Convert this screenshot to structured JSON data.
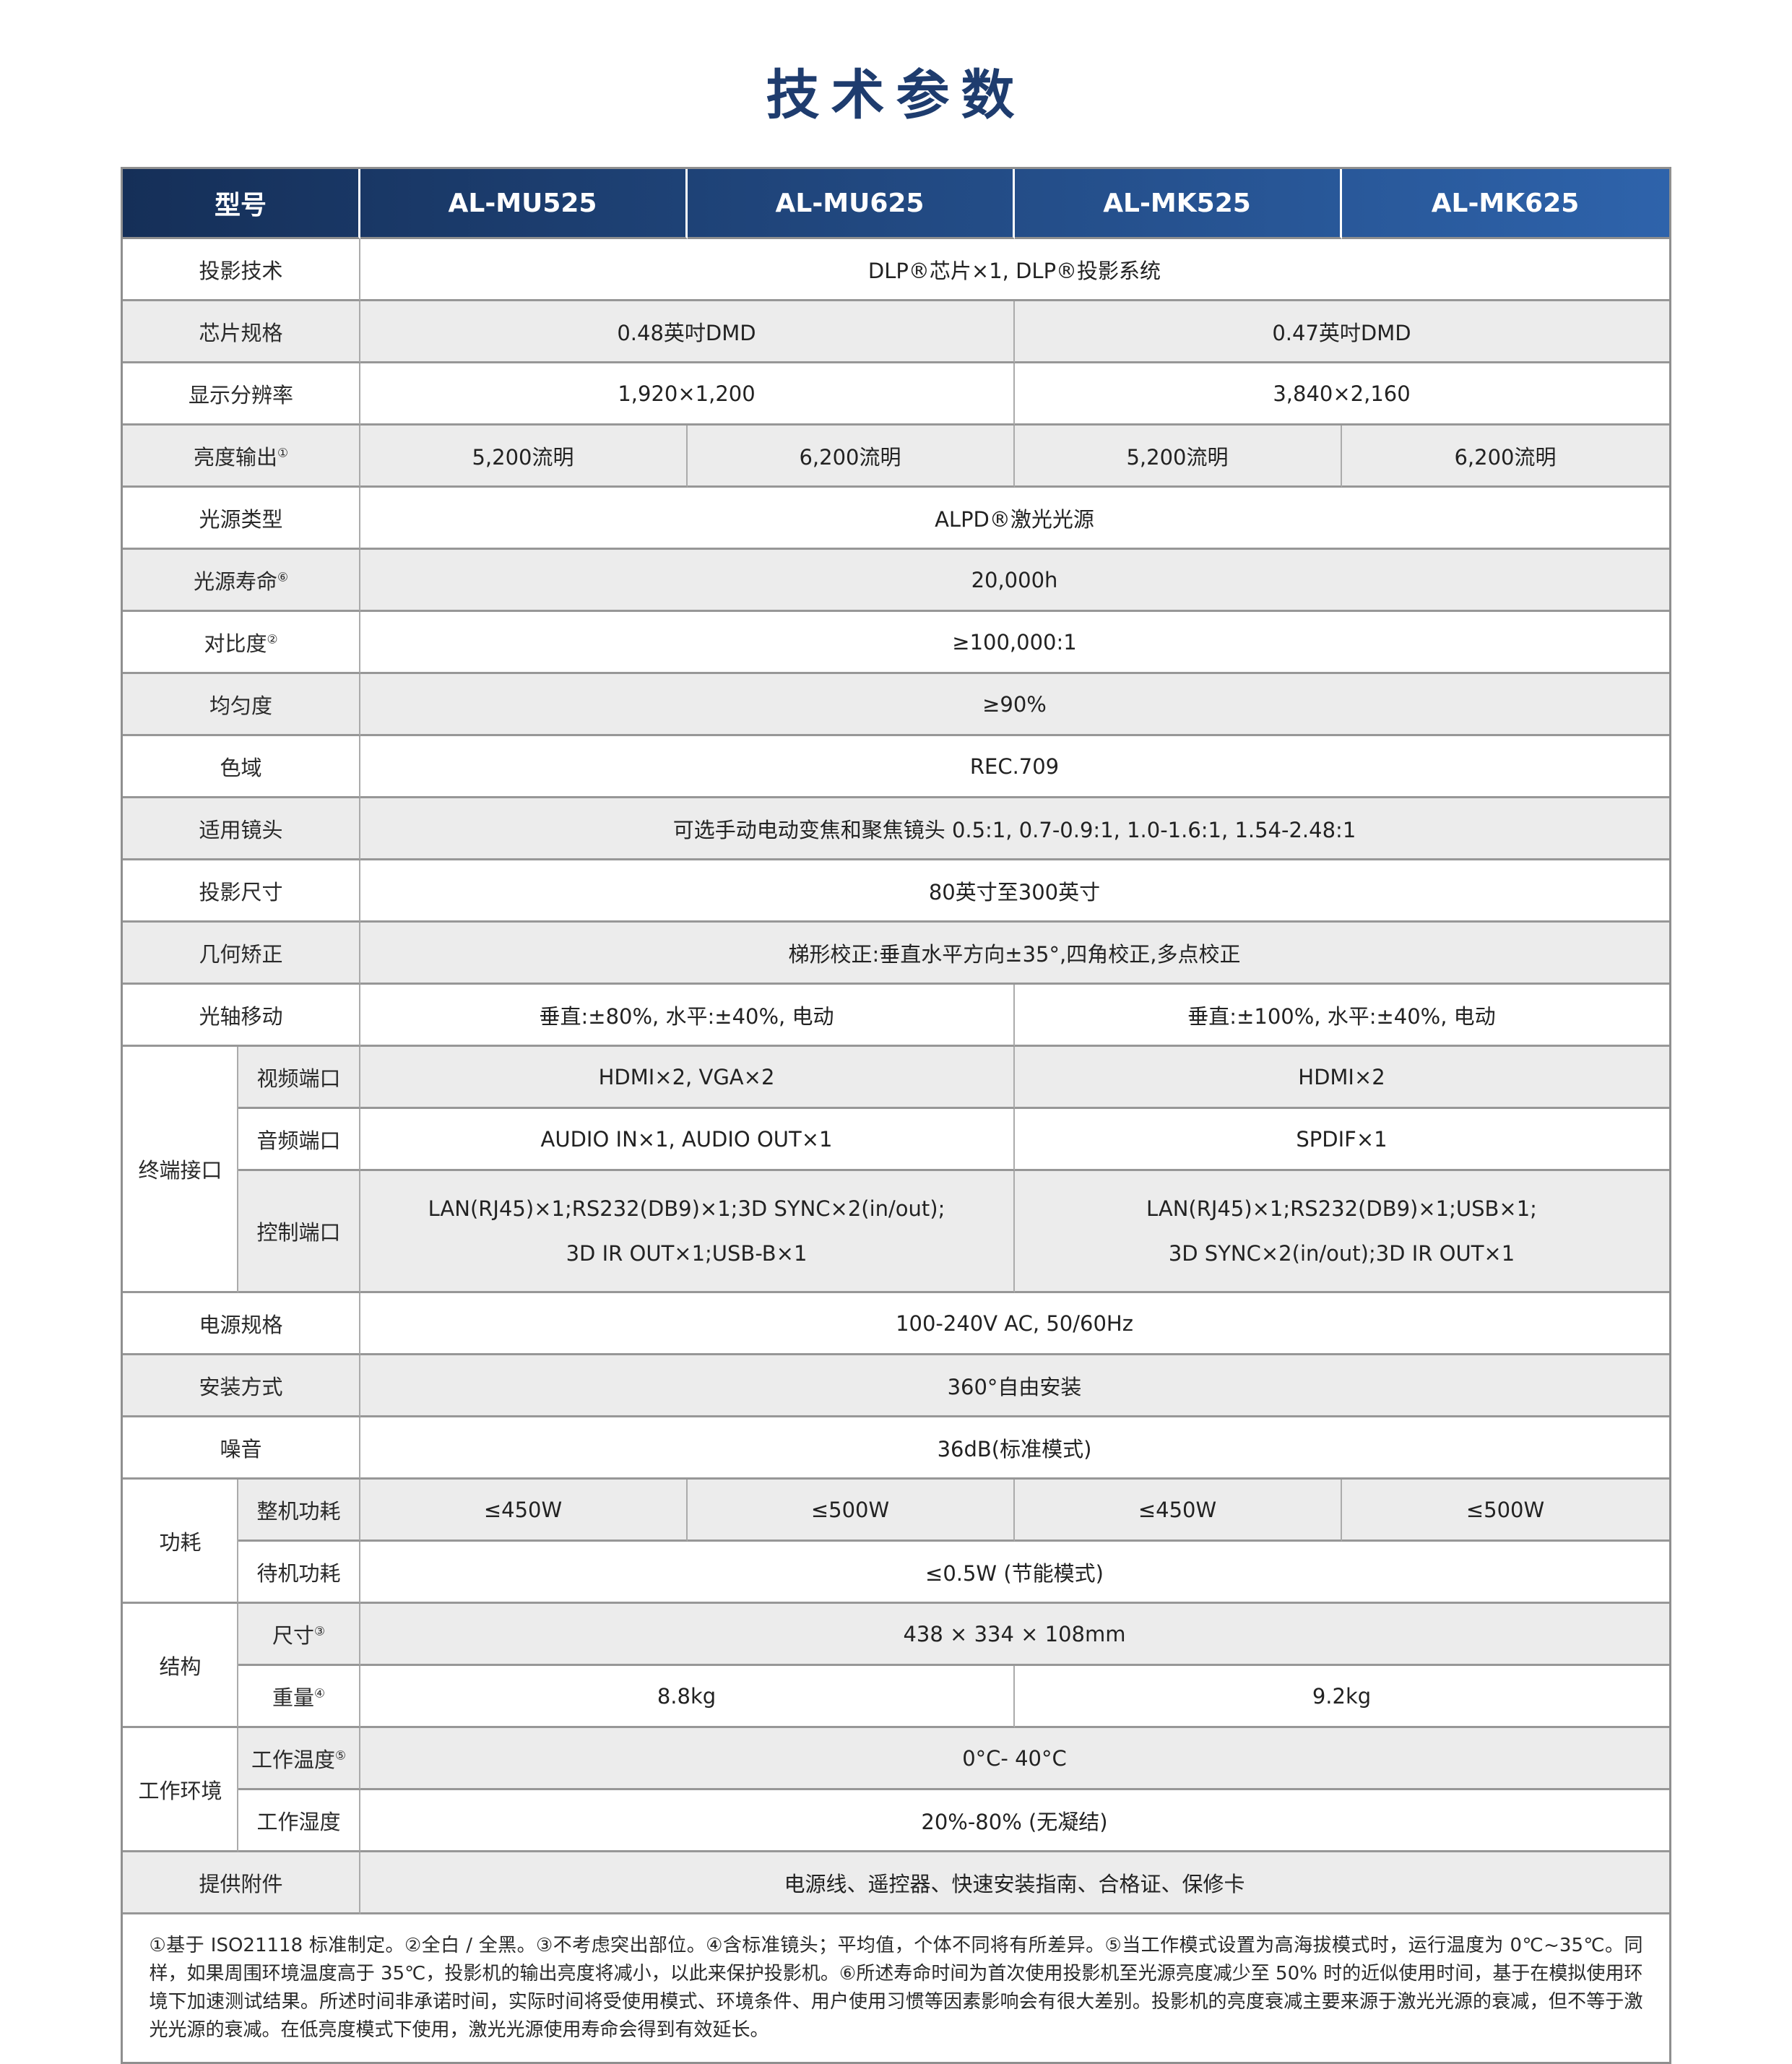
{
  "page": {
    "title": "技术参数"
  },
  "colors": {
    "title": "#1e3c6e",
    "header_grad_left": "#152f58",
    "header_grad_right": "#2e63ab",
    "row_alt": "#ececec",
    "border": "#8f8f8f"
  },
  "header": {
    "model_label": "型号",
    "models": [
      "AL-MU525",
      "AL-MU625",
      "AL-MK525",
      "AL-MK625"
    ]
  },
  "rows": {
    "projection_tech": {
      "label": "投影技术",
      "value": "DLP®芯片×1, DLP®投影系统"
    },
    "chip_spec": {
      "label": "芯片规格",
      "left": "0.48英吋DMD",
      "right": "0.47英吋DMD"
    },
    "resolution": {
      "label": "显示分辨率",
      "left": "1,920×1,200",
      "right": "3,840×2,160"
    },
    "brightness": {
      "label": "亮度输出",
      "sup": "①",
      "values": [
        "5,200流明",
        "6,200流明",
        "5,200流明",
        "6,200流明"
      ]
    },
    "light_source_type": {
      "label": "光源类型",
      "value": "ALPD®激光光源"
    },
    "light_source_life": {
      "label": "光源寿命",
      "sup": "⑥",
      "value": "20,000h"
    },
    "contrast": {
      "label": "对比度",
      "sup": "②",
      "value": "≥100,000:1"
    },
    "uniformity": {
      "label": "均匀度",
      "value": "≥90%"
    },
    "color_gamut": {
      "label": "色域",
      "value": "REC.709"
    },
    "lens": {
      "label": "适用镜头",
      "value": "可选手动电动变焦和聚焦镜头 0.5:1, 0.7-0.9:1, 1.0-1.6:1, 1.54-2.48:1"
    },
    "image_size": {
      "label": "投影尺寸",
      "value": "80英寸至300英寸"
    },
    "geometry": {
      "label": "几何矫正",
      "value": "梯形校正:垂直水平方向±35°,四角校正,多点校正"
    },
    "lens_shift": {
      "label": "光轴移动",
      "left": "垂直:±80%, 水平:±40%, 电动",
      "right": "垂直:±100%, 水平:±40%, 电动"
    },
    "terminals": {
      "group": "终端接口",
      "video": {
        "label": "视频端口",
        "left": "HDMI×2, VGA×2",
        "right": "HDMI×2"
      },
      "audio": {
        "label": "音频端口",
        "left": "AUDIO IN×1, AUDIO OUT×1",
        "right": "SPDIF×1"
      },
      "control": {
        "label": "控制端口",
        "left_line1": "LAN(RJ45)×1;RS232(DB9)×1;3D SYNC×2(in/out);",
        "left_line2": "3D IR OUT×1;USB-B×1",
        "right_line1": "LAN(RJ45)×1;RS232(DB9)×1;USB×1;",
        "right_line2": "3D SYNC×2(in/out);3D IR OUT×1"
      }
    },
    "power_spec": {
      "label": "电源规格",
      "value": "100-240V AC, 50/60Hz"
    },
    "installation": {
      "label": "安装方式",
      "value": "360°自由安装"
    },
    "noise": {
      "label": "噪音",
      "value": "36dB(标准模式)"
    },
    "power": {
      "group": "功耗",
      "full": {
        "label": "整机功耗",
        "values": [
          "≤450W",
          "≤500W",
          "≤450W",
          "≤500W"
        ]
      },
      "standby": {
        "label": "待机功耗",
        "value": "≤0.5W (节能模式)"
      }
    },
    "structure": {
      "group": "结构",
      "dimensions": {
        "label": "尺寸",
        "sup": "③",
        "value": "438 × 334 × 108mm"
      },
      "weight": {
        "label": "重量",
        "sup": "④",
        "left": "8.8kg",
        "right": "9.2kg"
      }
    },
    "environment": {
      "group": "工作环境",
      "temperature": {
        "label": "工作温度",
        "sup": "⑤",
        "value": "0°C- 40°C"
      },
      "humidity": {
        "label": "工作湿度",
        "value": "20%-80% (无凝结)"
      }
    },
    "accessories": {
      "label": "提供附件",
      "value": "电源线、遥控器、快速安装指南、合格证、保修卡"
    }
  },
  "footnote": "①基于 ISO21118 标准制定。②全白 / 全黑。③不考虑突出部位。④含标准镜头；平均值，个体不同将有所差异。⑤当工作模式设置为高海拔模式时，运行温度为 0℃~35℃。同样，如果周围环境温度高于 35℃，投影机的输出亮度将减小，以此来保护投影机。⑥所述寿命时间为首次使用投影机至光源亮度减少至 50% 时的近似使用时间，基于在模拟使用环境下加速测试结果。所述时间非承诺时间，实际时间将受使用模式、环境条件、用户使用习惯等因素影响会有很大差别。投影机的亮度衰减主要来源于激光光源的衰减，但不等于激光光源的衰减。在低亮度模式下使用，激光光源使用寿命会得到有效延长。"
}
